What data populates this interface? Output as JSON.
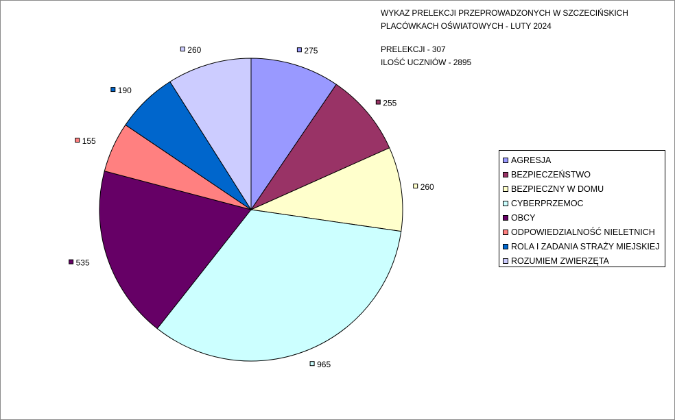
{
  "title": {
    "line1": "WYKAZ PRELEKCJI PRZEPROWADZONYCH W SZCZECIŃSKICH",
    "line2": "PLACÓWKACH OŚWIATOWYCH - LUTY 2024",
    "line3": "PRELEKCJI - 307",
    "line4": "ILOŚĆ UCZNIÓW - 2895"
  },
  "chart_data": {
    "type": "pie",
    "title": "WYKAZ PRELEKCJI PRZEPROWADZONYCH W SZCZECIŃSKICH PLACÓWKACH OŚWIATOWYCH - LUTY 2024",
    "subtitle": "PRELEKCJI - 307 / ILOŚĆ UCZNIÓW - 2895",
    "legend_position": "right",
    "slices": [
      {
        "label": "AGRESJA",
        "value": 275,
        "color": "#9999ff"
      },
      {
        "label": "BEZPIECZEŃSTWO",
        "value": 255,
        "color": "#993366"
      },
      {
        "label": "BEZPIECZNY W DOMU",
        "value": 260,
        "color": "#ffffcc"
      },
      {
        "label": "CYBERPRZEMOC",
        "value": 965,
        "color": "#ccffff"
      },
      {
        "label": "OBCY",
        "value": 535,
        "color": "#660066"
      },
      {
        "label": "ODPOWIEDZIALNOŚĆ NIELETNICH",
        "value": 155,
        "color": "#ff8080"
      },
      {
        "label": "ROLA I ZADANIA STRAŻY MIEJSKIEJ",
        "value": 190,
        "color": "#0066cc"
      },
      {
        "label": "ROZUMIEM ZWIERZĘTA",
        "value": 260,
        "color": "#ccccff"
      }
    ]
  }
}
